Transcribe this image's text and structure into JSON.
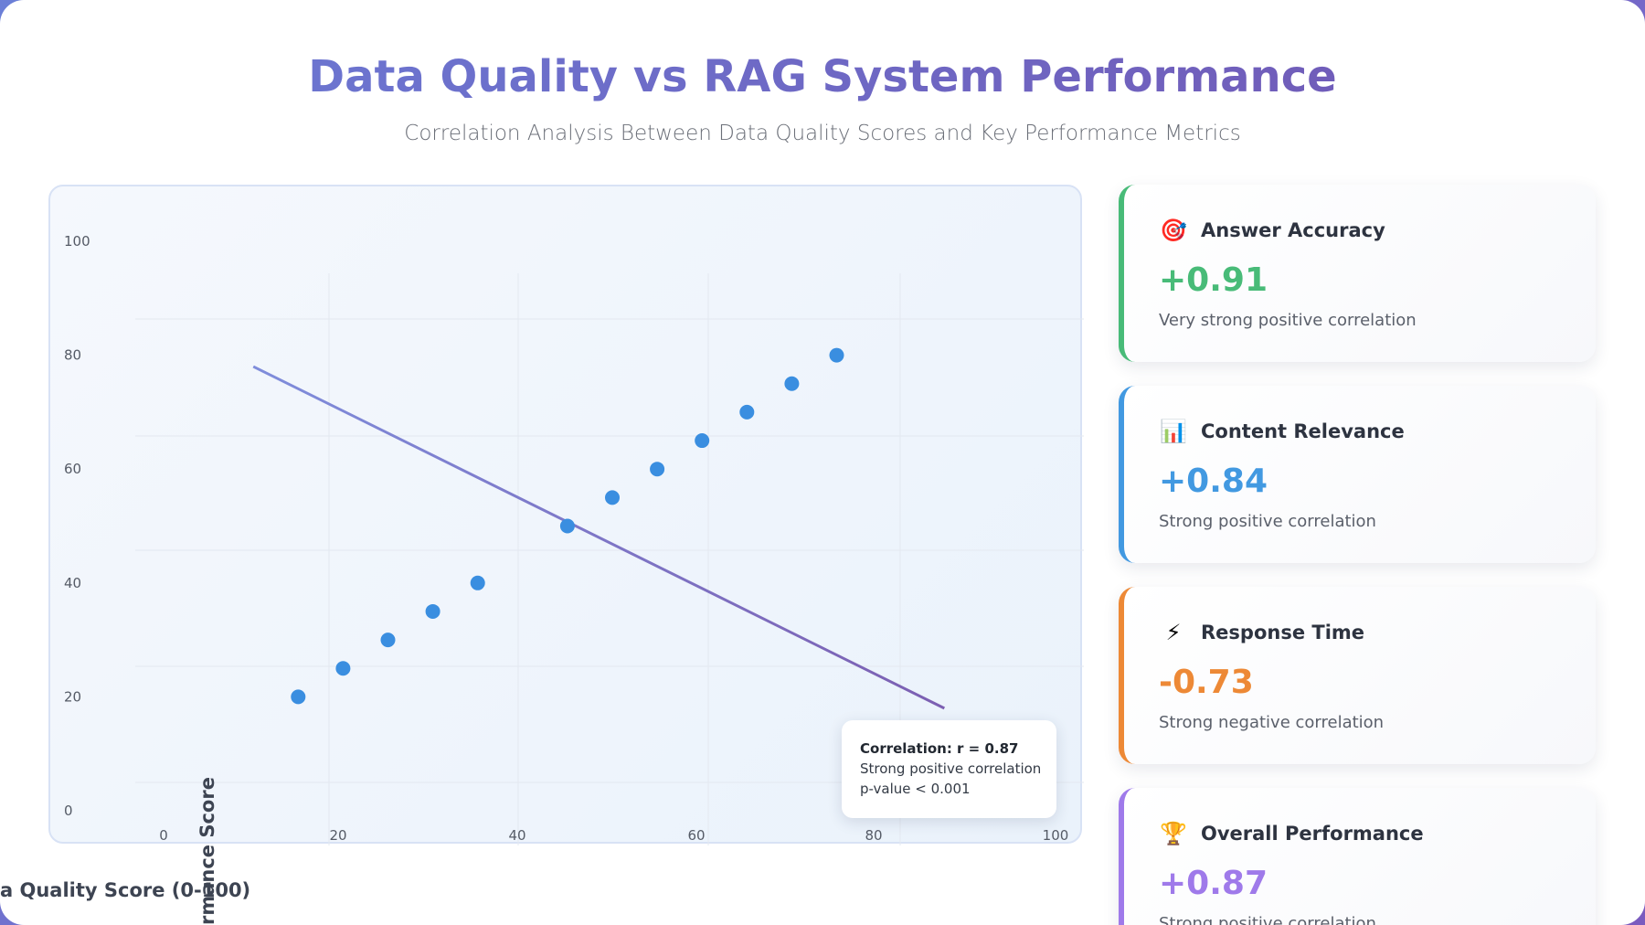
{
  "header": {
    "title": "Data Quality vs RAG System Performance",
    "subtitle": "Correlation Analysis Between Data Quality Scores and Key Performance Metrics"
  },
  "chart_data": {
    "type": "scatter",
    "title": "",
    "xlabel": "a Quality Score (0-100)",
    "ylabel": "rmance Score",
    "x_ticks": [
      "0",
      "20",
      "40",
      "60",
      "80",
      "100"
    ],
    "y_ticks": [
      "0",
      "20",
      "40",
      "60",
      "80",
      "100"
    ],
    "xlim": [
      0,
      100
    ],
    "ylim": [
      0,
      100
    ],
    "grid": true,
    "series": [
      {
        "x": [
          15,
          20,
          25,
          30,
          35,
          45,
          50,
          55,
          60,
          65,
          70,
          75
        ],
        "y": [
          20,
          25,
          30,
          35,
          40,
          50,
          55,
          60,
          65,
          70,
          75,
          80
        ],
        "color": "#3a8ee0"
      }
    ],
    "trendline": {
      "x": [
        10,
        87
      ],
      "y": [
        78,
        18
      ],
      "color": "#7f86d6"
    }
  },
  "tooltip": {
    "title": "Correlation: r = 0.87",
    "line1": "Strong positive correlation",
    "line2": "p-value < 0.001"
  },
  "metrics": [
    {
      "icon": "target-icon",
      "glyph": "🎯",
      "label": "Answer Accuracy",
      "value": "+0.91",
      "description": "Very strong positive correlation",
      "color": "#48bb78"
    },
    {
      "icon": "bar-chart-icon",
      "glyph": "📊",
      "label": "Content Relevance",
      "value": "+0.84",
      "description": "Strong positive correlation",
      "color": "#4299e1"
    },
    {
      "icon": "lightning-icon",
      "glyph": "⚡",
      "label": "Response Time",
      "value": "-0.73",
      "description": "Strong negative correlation",
      "color": "#ed8936"
    },
    {
      "icon": "trophy-icon",
      "glyph": "🏆",
      "label": "Overall Performance",
      "value": "+0.87",
      "description": "Strong positive correlation",
      "color": "#9f7aea"
    }
  ]
}
